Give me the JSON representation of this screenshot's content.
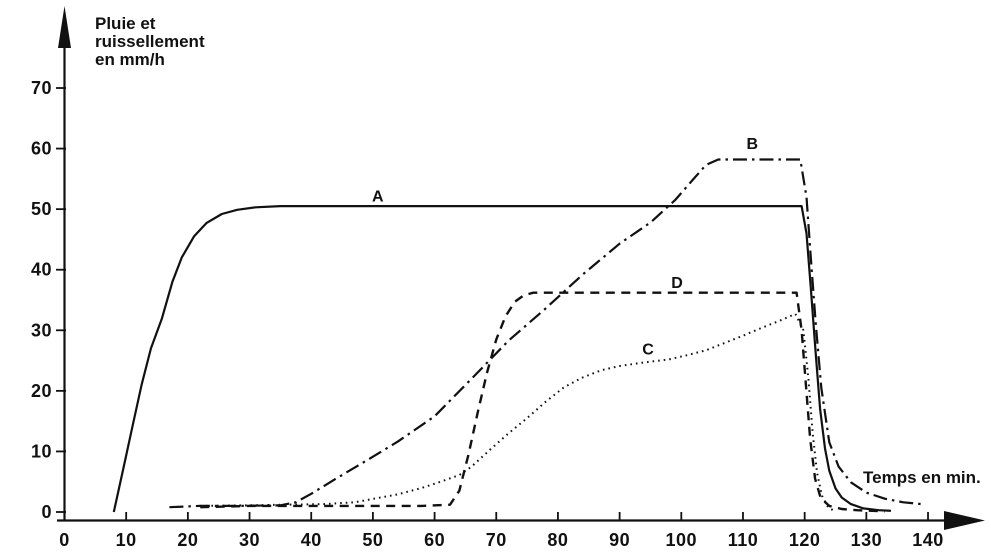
{
  "figure": {
    "background_color": "#ffffff",
    "ink_color": "#111111"
  },
  "chart_data": {
    "type": "line",
    "title": "Pluie et ruissellement en mm/h",
    "ylabel": "Pluie et ruissellement en mm/h",
    "ylabel_lines": [
      "Pluie et",
      "ruissellement",
      "en mm/h"
    ],
    "xlabel": "Temps en min.",
    "xlim": [
      0,
      145
    ],
    "ylim": [
      0,
      75
    ],
    "x_ticks": [
      0,
      10,
      20,
      30,
      40,
      50,
      60,
      70,
      80,
      90,
      100,
      110,
      120,
      130,
      140
    ],
    "y_ticks": [
      0,
      10,
      20,
      30,
      40,
      50,
      60,
      70
    ],
    "grid": false,
    "legend_position": "inline-curve-labels",
    "series": [
      {
        "name": "A",
        "style": "solid",
        "label": {
          "t": 50.8,
          "v": 51.3
        },
        "points": [
          [
            8,
            0
          ],
          [
            9.5,
            7
          ],
          [
            11,
            14
          ],
          [
            12.5,
            21
          ],
          [
            14,
            27
          ],
          [
            15.8,
            32
          ],
          [
            17.5,
            38
          ],
          [
            19,
            42
          ],
          [
            21,
            45.5
          ],
          [
            23,
            47.7
          ],
          [
            25.5,
            49.2
          ],
          [
            28,
            49.9
          ],
          [
            31,
            50.3
          ],
          [
            35,
            50.5
          ],
          [
            60,
            50.5
          ],
          [
            90,
            50.5
          ],
          [
            119.5,
            50.5
          ],
          [
            120.3,
            46
          ],
          [
            121,
            37
          ],
          [
            121.8,
            26
          ],
          [
            122.5,
            17
          ],
          [
            123.3,
            10.5
          ],
          [
            124,
            6.8
          ],
          [
            125,
            3.9
          ],
          [
            126,
            2.4
          ],
          [
            127.5,
            1.3
          ],
          [
            129.5,
            0.6
          ],
          [
            132,
            0.3
          ],
          [
            134,
            0.2
          ]
        ]
      },
      {
        "name": "B",
        "style": "dash-dot",
        "label": {
          "t": 111.5,
          "v": 59.9
        },
        "points": [
          [
            17,
            0.8
          ],
          [
            22,
            1
          ],
          [
            28,
            1
          ],
          [
            35,
            1.1
          ],
          [
            37.5,
            1.6
          ],
          [
            40,
            3
          ],
          [
            44,
            5.5
          ],
          [
            48,
            7.9
          ],
          [
            54,
            11.6
          ],
          [
            60,
            15.8
          ],
          [
            66,
            22
          ],
          [
            72,
            28.3
          ],
          [
            78,
            33.6
          ],
          [
            84,
            39.2
          ],
          [
            90,
            44.3
          ],
          [
            95,
            47.8
          ],
          [
            99,
            51.5
          ],
          [
            102,
            55
          ],
          [
            104,
            57.3
          ],
          [
            106,
            58.2
          ],
          [
            119.3,
            58.2
          ],
          [
            120.3,
            52
          ],
          [
            121,
            42
          ],
          [
            121.8,
            31
          ],
          [
            122.7,
            20.5
          ],
          [
            124,
            11.5
          ],
          [
            125.5,
            7.5
          ],
          [
            127.5,
            4.9
          ],
          [
            130,
            3.2
          ],
          [
            133,
            2.2
          ],
          [
            136,
            1.6
          ],
          [
            139,
            1.3
          ]
        ]
      },
      {
        "name": "C",
        "style": "dotted",
        "label": {
          "t": 94.6,
          "v": 26.0
        },
        "points": [
          [
            22,
            1
          ],
          [
            30,
            1.1
          ],
          [
            36,
            1.2
          ],
          [
            42,
            1.3
          ],
          [
            47,
            1.6
          ],
          [
            54,
            2.9
          ],
          [
            58,
            4
          ],
          [
            61,
            5
          ],
          [
            64,
            6.1
          ],
          [
            66,
            7.5
          ],
          [
            69,
            10.3
          ],
          [
            72,
            13
          ],
          [
            75,
            15.5
          ],
          [
            78,
            18.2
          ],
          [
            81,
            20.6
          ],
          [
            84,
            22.2
          ],
          [
            87,
            23.4
          ],
          [
            90,
            24.1
          ],
          [
            94,
            24.7
          ],
          [
            98,
            25.2
          ],
          [
            101,
            25.9
          ],
          [
            104,
            26.7
          ],
          [
            107,
            27.9
          ],
          [
            110,
            29.1
          ],
          [
            113,
            30.4
          ],
          [
            116,
            31.6
          ],
          [
            118.5,
            32.7
          ],
          [
            119.8,
            30
          ],
          [
            120.6,
            22
          ],
          [
            121.3,
            13
          ],
          [
            122,
            6.5
          ],
          [
            122.8,
            2.7
          ],
          [
            123.8,
            0.8
          ],
          [
            124.6,
            0.3
          ]
        ]
      },
      {
        "name": "D",
        "style": "dashed",
        "label": {
          "t": 99.3,
          "v": 37.0
        },
        "points": [
          [
            22,
            0.8
          ],
          [
            30,
            1
          ],
          [
            45,
            1
          ],
          [
            58,
            1
          ],
          [
            62.5,
            1.2
          ],
          [
            64,
            3.5
          ],
          [
            65.5,
            9.5
          ],
          [
            67,
            16.5
          ],
          [
            68.5,
            23
          ],
          [
            70,
            28.5
          ],
          [
            71.5,
            32.3
          ],
          [
            73,
            34.7
          ],
          [
            74.5,
            35.8
          ],
          [
            76,
            36.2
          ],
          [
            90,
            36.2
          ],
          [
            105,
            36.2
          ],
          [
            118.7,
            36.2
          ],
          [
            119.5,
            30
          ],
          [
            120.2,
            21
          ],
          [
            120.9,
            12
          ],
          [
            121.7,
            5.5
          ],
          [
            122.6,
            2.3
          ],
          [
            124,
            1
          ],
          [
            126,
            0.5
          ],
          [
            128.5,
            0.3
          ],
          [
            131,
            0.2
          ],
          [
            133,
            0.1
          ]
        ]
      }
    ]
  }
}
